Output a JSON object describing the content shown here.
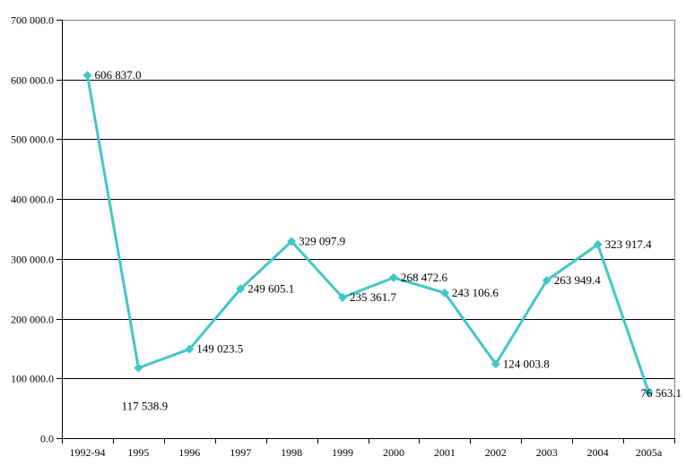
{
  "chart_data": {
    "type": "line",
    "title": "",
    "xlabel": "",
    "ylabel": "",
    "categories": [
      "1992-94",
      "1995",
      "1996",
      "1997",
      "1998",
      "1999",
      "2000",
      "2001",
      "2002",
      "2003",
      "2004",
      "2005a"
    ],
    "series": [
      {
        "name": "value",
        "values": [
          606837.0,
          117538.9,
          149023.5,
          249605.1,
          329097.9,
          235361.7,
          268472.6,
          243106.6,
          124003.8,
          263949.4,
          323917.4,
          76563.1
        ],
        "point_labels": [
          "606 837.0",
          "117 538.9",
          "149 023.5",
          "249 605.1",
          "329 097.9",
          "235 361.7",
          "268 472.6",
          "243 106.6",
          "124 003.8",
          "263 949.4",
          "323 917.4",
          "76 563.1"
        ]
      }
    ],
    "ylim": [
      0,
      700000
    ],
    "y_tick_step": 100000,
    "y_tick_labels": [
      "0.0",
      "100 000.0",
      "200 000.0",
      "300 000.0",
      "400 000.0",
      "500 000.0",
      "600 000.0",
      "700 000.0"
    ],
    "grid": "horizontal",
    "legend": "none",
    "marker": "diamond",
    "colors": {
      "line": "#42C6C8",
      "gridline": "#000000",
      "axis": "#000000",
      "frame": "#848484",
      "text": "#000000",
      "background": "#ffffff"
    },
    "label_placement_overrides": {
      "1": {
        "dx": 7,
        "dy": 43,
        "anchor": "middle"
      },
      "11": {
        "dx": -9,
        "dy": 1,
        "anchor": "start"
      }
    }
  }
}
